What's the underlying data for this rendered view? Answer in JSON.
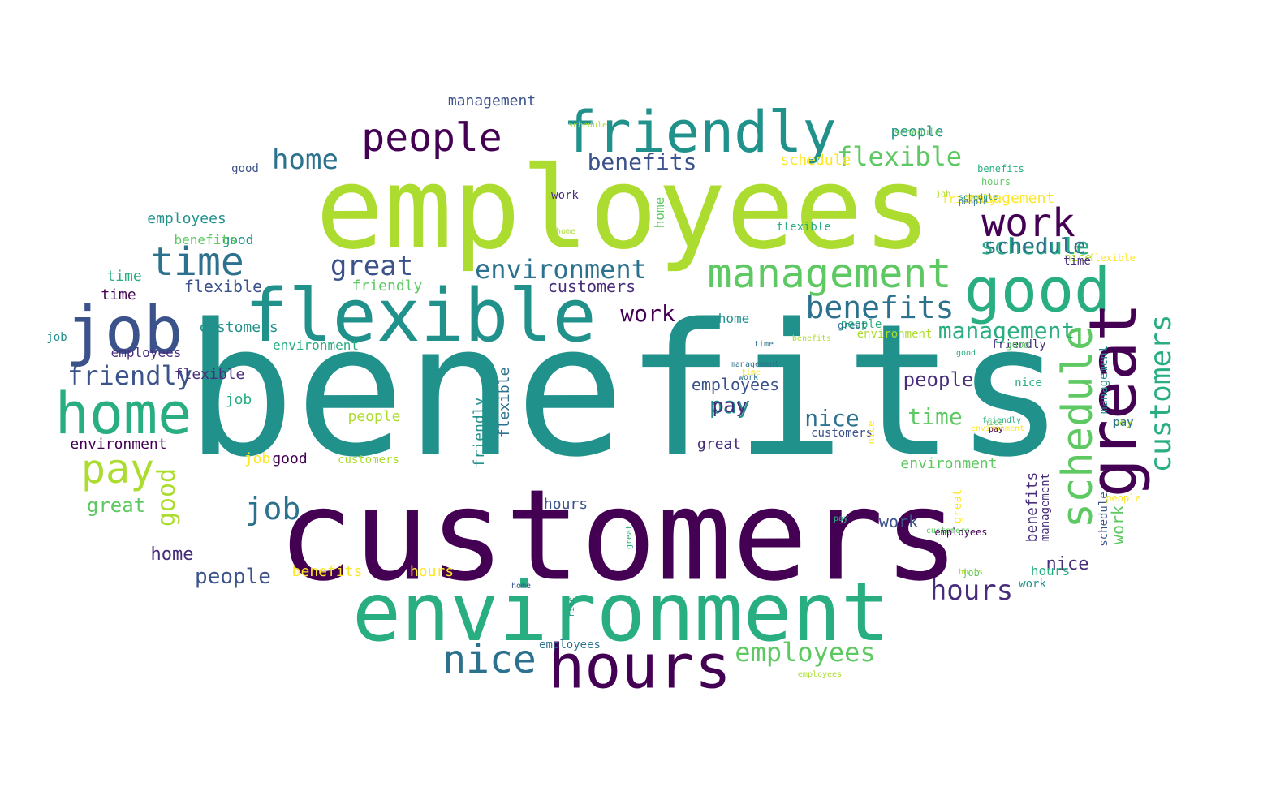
{
  "cloud": {
    "palette": {
      "viridis_0": "#440154",
      "viridis_1": "#472d7b",
      "viridis_2": "#3b528b",
      "viridis_3": "#2c728e",
      "viridis_4": "#21918c",
      "viridis_5": "#28ae80",
      "viridis_6": "#5ec962",
      "viridis_7": "#addc30",
      "viridis_8": "#fde725"
    },
    "words": [
      {
        "text": "benefits",
        "weight": 100,
        "color": "viridis_4"
      },
      {
        "text": "customers",
        "weight": 96,
        "color": "viridis_0"
      },
      {
        "text": "employees",
        "weight": 84,
        "color": "viridis_7"
      },
      {
        "text": "environment",
        "weight": 74,
        "color": "viridis_5"
      },
      {
        "text": "flexible",
        "weight": 58,
        "color": "viridis_4"
      },
      {
        "text": "hours",
        "weight": 46,
        "color": "viridis_0"
      },
      {
        "text": "friendly",
        "weight": 45,
        "color": "viridis_4"
      },
      {
        "text": "job",
        "weight": 43,
        "color": "viridis_2"
      },
      {
        "text": "home",
        "weight": 42,
        "color": "viridis_5"
      },
      {
        "text": "good",
        "weight": 41,
        "color": "viridis_5"
      },
      {
        "text": "management",
        "weight": 37,
        "color": "viridis_6"
      },
      {
        "text": "great",
        "weight": 37,
        "color": "viridis_0"
      },
      {
        "text": "schedule",
        "weight": 33,
        "color": "viridis_6"
      },
      {
        "text": "nice",
        "weight": 30,
        "color": "viridis_3"
      },
      {
        "text": "people",
        "weight": 30,
        "color": "viridis_0"
      },
      {
        "text": "pay",
        "weight": 29,
        "color": "viridis_7"
      },
      {
        "text": "time",
        "weight": 28,
        "color": "viridis_3"
      },
      {
        "text": "work",
        "weight": 27,
        "color": "viridis_0"
      },
      {
        "text": "benefits",
        "weight": 22,
        "color": "viridis_3"
      },
      {
        "text": "customers",
        "weight": 20,
        "color": "viridis_5"
      },
      {
        "text": "environment",
        "weight": 18,
        "color": "viridis_3"
      },
      {
        "text": "friendly",
        "weight": 18,
        "color": "viridis_2"
      },
      {
        "text": "management",
        "weight": 17,
        "color": "viridis_5"
      },
      {
        "text": "people",
        "weight": 16,
        "color": "viridis_1"
      },
      {
        "text": "flexible",
        "weight": 16,
        "color": "viridis_6"
      },
      {
        "text": "employees",
        "weight": 15,
        "color": "viridis_6"
      },
      {
        "text": "hours",
        "weight": 15,
        "color": "viridis_1"
      },
      {
        "text": "nice",
        "weight": 15,
        "color": "viridis_3"
      },
      {
        "text": "benefits",
        "weight": 14,
        "color": "viridis_2"
      },
      {
        "text": "good",
        "weight": 14,
        "color": "viridis_7"
      },
      {
        "text": "schedule",
        "weight": 14,
        "color": "viridis_5"
      },
      {
        "text": "work",
        "weight": 13,
        "color": "viridis_0"
      },
      {
        "text": "pay",
        "weight": 13,
        "color": "viridis_4"
      },
      {
        "text": "job",
        "weight": 13,
        "color": "viridis_3"
      },
      {
        "text": "great",
        "weight": 13,
        "color": "viridis_2"
      },
      {
        "text": "home",
        "weight": 12,
        "color": "viridis_3"
      },
      {
        "text": "time",
        "weight": 12,
        "color": "viridis_6"
      },
      {
        "text": "customers",
        "weight": 12,
        "color": "viridis_1"
      },
      {
        "text": "environment",
        "weight": 12,
        "color": "viridis_6"
      },
      {
        "text": "flexible",
        "weight": 11,
        "color": "viridis_2"
      },
      {
        "text": "friendly",
        "weight": 11,
        "color": "viridis_6"
      },
      {
        "text": "people",
        "weight": 11,
        "color": "viridis_2"
      },
      {
        "text": "employees",
        "weight": 11,
        "color": "viridis_2"
      },
      {
        "text": "schedule",
        "weight": 11,
        "color": "viridis_3"
      },
      {
        "text": "nice",
        "weight": 11,
        "color": "viridis_1"
      },
      {
        "text": "hours",
        "weight": 10,
        "color": "viridis_8"
      },
      {
        "text": "management",
        "weight": 10,
        "color": "viridis_2"
      },
      {
        "text": "benefits",
        "weight": 10,
        "color": "viridis_8"
      },
      {
        "text": "good",
        "weight": 10,
        "color": "viridis_0"
      },
      {
        "text": "job",
        "weight": 10,
        "color": "viridis_5"
      },
      {
        "text": "work",
        "weight": 10,
        "color": "viridis_6"
      },
      {
        "text": "great",
        "weight": 10,
        "color": "viridis_6"
      },
      {
        "text": "time",
        "weight": 9,
        "color": "viridis_0"
      },
      {
        "text": "pay",
        "weight": 9,
        "color": "viridis_1"
      },
      {
        "text": "home",
        "weight": 9,
        "color": "viridis_1"
      },
      {
        "text": "customers",
        "weight": 9,
        "color": "viridis_7"
      },
      {
        "text": "environment",
        "weight": 9,
        "color": "viridis_0"
      },
      {
        "text": "friendly",
        "weight": 9,
        "color": "viridis_4"
      },
      {
        "text": "flexible",
        "weight": 9,
        "color": "viridis_1"
      },
      {
        "text": "people",
        "weight": 8,
        "color": "viridis_7"
      },
      {
        "text": "employees",
        "weight": 8,
        "color": "viridis_4"
      },
      {
        "text": "schedule",
        "weight": 8,
        "color": "viridis_8"
      },
      {
        "text": "nice",
        "weight": 8,
        "color": "viridis_5"
      },
      {
        "text": "hours",
        "weight": 8,
        "color": "viridis_2"
      },
      {
        "text": "management",
        "weight": 8,
        "color": "viridis_8"
      },
      {
        "text": "benefits",
        "weight": 7,
        "color": "viridis_1"
      },
      {
        "text": "good",
        "weight": 7,
        "color": "viridis_4"
      },
      {
        "text": "job",
        "weight": 7,
        "color": "viridis_8"
      },
      {
        "text": "work",
        "weight": 7,
        "color": "viridis_2"
      },
      {
        "text": "great",
        "weight": 7,
        "color": "viridis_1"
      },
      {
        "text": "time",
        "weight": 7,
        "color": "viridis_5"
      },
      {
        "text": "pay",
        "weight": 7,
        "color": "viridis_7"
      },
      {
        "text": "home",
        "weight": 7,
        "color": "viridis_4"
      },
      {
        "text": "customers",
        "weight": 6,
        "color": "viridis_4"
      },
      {
        "text": "environment",
        "weight": 6,
        "color": "viridis_5"
      },
      {
        "text": "friendly",
        "weight": 6,
        "color": "viridis_1"
      },
      {
        "text": "flexible",
        "weight": 6,
        "color": "viridis_3"
      },
      {
        "text": "people",
        "weight": 6,
        "color": "viridis_4"
      },
      {
        "text": "employees",
        "weight": 6,
        "color": "viridis_1"
      },
      {
        "text": "schedule",
        "weight": 6,
        "color": "viridis_2"
      },
      {
        "text": "nice",
        "weight": 5,
        "color": "viridis_7"
      },
      {
        "text": "hours",
        "weight": 5,
        "color": "viridis_5"
      },
      {
        "text": "management",
        "weight": 5,
        "color": "viridis_1"
      },
      {
        "text": "benefits",
        "weight": 5,
        "color": "viridis_6"
      },
      {
        "text": "good",
        "weight": 5,
        "color": "viridis_2"
      },
      {
        "text": "job",
        "weight": 5,
        "color": "viridis_4"
      },
      {
        "text": "work",
        "weight": 5,
        "color": "viridis_4"
      },
      {
        "text": "great",
        "weight": 5,
        "color": "viridis_8"
      },
      {
        "text": "time",
        "weight": 4,
        "color": "viridis_1"
      },
      {
        "text": "pay",
        "weight": 4,
        "color": "viridis_3"
      },
      {
        "text": "home",
        "weight": 4,
        "color": "viridis_6"
      },
      {
        "text": "customers",
        "weight": 4,
        "color": "viridis_2"
      },
      {
        "text": "environment",
        "weight": 4,
        "color": "viridis_7"
      },
      {
        "text": "friendly",
        "weight": 4,
        "color": "viridis_8"
      },
      {
        "text": "flexible",
        "weight": 4,
        "color": "viridis_5"
      },
      {
        "text": "people",
        "weight": 4,
        "color": "viridis_5"
      },
      {
        "text": "employees",
        "weight": 3,
        "color": "viridis_3"
      },
      {
        "text": "schedule",
        "weight": 3,
        "color": "viridis_6"
      },
      {
        "text": "nice",
        "weight": 3,
        "color": "viridis_8"
      },
      {
        "text": "hours",
        "weight": 3,
        "color": "viridis_6"
      },
      {
        "text": "management",
        "weight": 3,
        "color": "viridis_4"
      },
      {
        "text": "benefits",
        "weight": 3,
        "color": "viridis_5"
      },
      {
        "text": "good",
        "weight": 3,
        "color": "viridis_6"
      },
      {
        "text": "job",
        "weight": 3,
        "color": "viridis_6"
      },
      {
        "text": "work",
        "weight": 3,
        "color": "viridis_1"
      },
      {
        "text": "great",
        "weight": 3,
        "color": "viridis_3"
      },
      {
        "text": "time",
        "weight": 2,
        "color": "viridis_3"
      },
      {
        "text": "pay",
        "weight": 2,
        "color": "viridis_5"
      },
      {
        "text": "home",
        "weight": 2,
        "color": "viridis_2"
      },
      {
        "text": "customers",
        "weight": 2,
        "color": "viridis_6"
      },
      {
        "text": "environment",
        "weight": 2,
        "color": "viridis_8"
      },
      {
        "text": "friendly",
        "weight": 2,
        "color": "viridis_5"
      },
      {
        "text": "flexible",
        "weight": 2,
        "color": "viridis_8"
      },
      {
        "text": "people",
        "weight": 2,
        "color": "viridis_8"
      },
      {
        "text": "employees",
        "weight": 2,
        "color": "viridis_0"
      },
      {
        "text": "schedule",
        "weight": 2,
        "color": "viridis_4"
      },
      {
        "text": "nice",
        "weight": 2,
        "color": "viridis_6"
      },
      {
        "text": "hours",
        "weight": 1,
        "color": "viridis_7"
      },
      {
        "text": "management",
        "weight": 1,
        "color": "viridis_3"
      },
      {
        "text": "benefits",
        "weight": 1,
        "color": "viridis_7"
      },
      {
        "text": "good",
        "weight": 1,
        "color": "viridis_5"
      },
      {
        "text": "job",
        "weight": 1,
        "color": "viridis_7"
      },
      {
        "text": "work",
        "weight": 1,
        "color": "viridis_3"
      },
      {
        "text": "great",
        "weight": 1,
        "color": "viridis_5"
      },
      {
        "text": "time",
        "weight": 1,
        "color": "viridis_8"
      },
      {
        "text": "pay",
        "weight": 1,
        "color": "viridis_0"
      },
      {
        "text": "home",
        "weight": 1,
        "color": "viridis_7"
      },
      {
        "text": "people",
        "weight": 1,
        "color": "viridis_3"
      },
      {
        "text": "employees",
        "weight": 1,
        "color": "viridis_7"
      },
      {
        "text": "nice",
        "weight": 1,
        "color": "viridis_4"
      },
      {
        "text": "schedule",
        "weight": 1,
        "color": "viridis_7"
      }
    ]
  }
}
